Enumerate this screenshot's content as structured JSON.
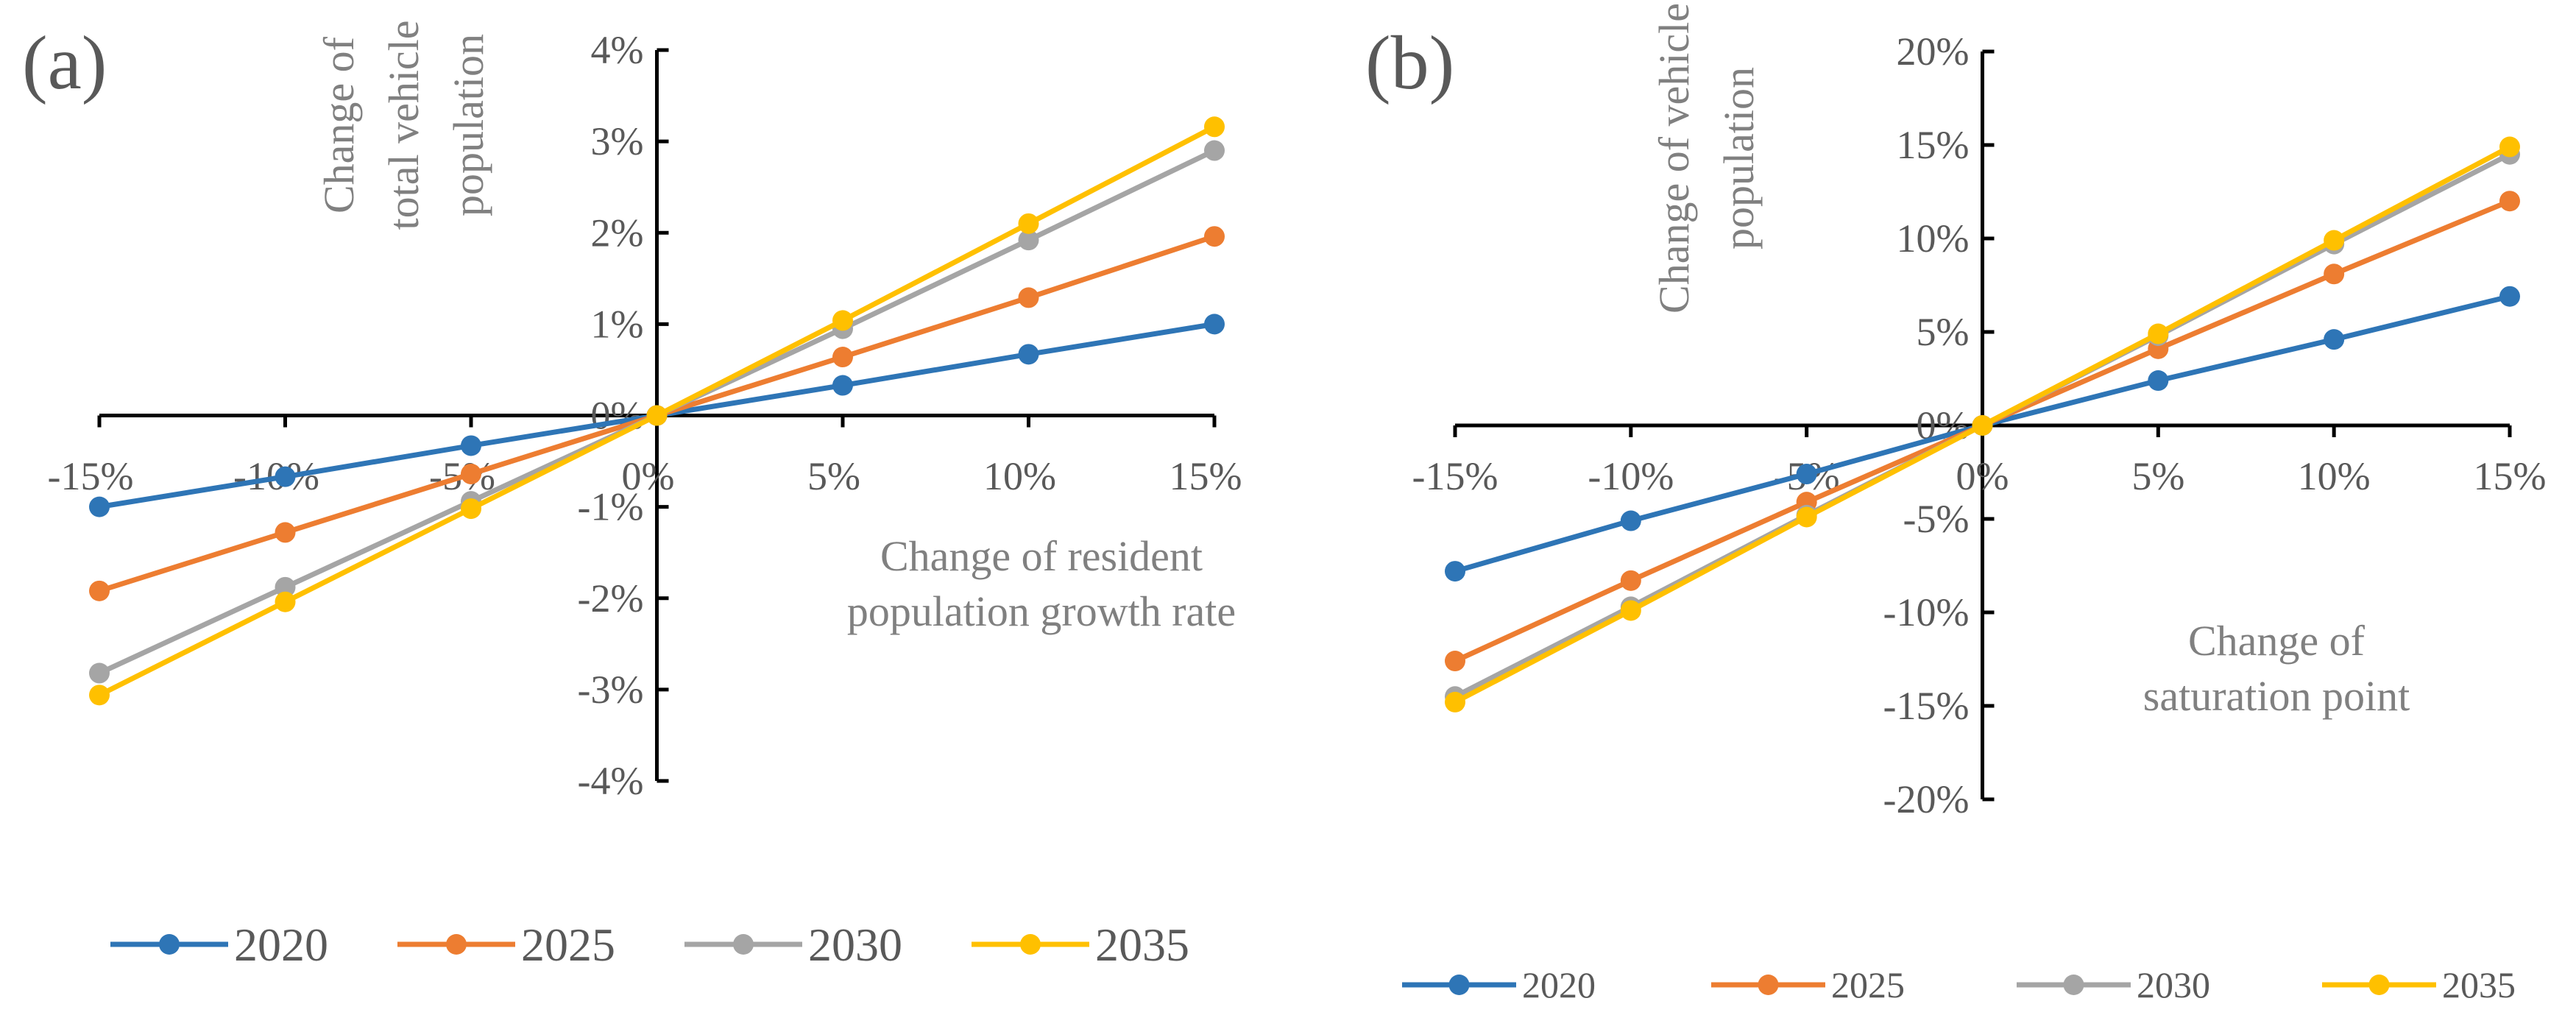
{
  "chart_data": [
    {
      "type": "line",
      "panel": "(a)",
      "title": "",
      "xlabel": [
        "Change of resident",
        "population growth rate"
      ],
      "ylabel": [
        "Change of",
        "total vehicle",
        "population"
      ],
      "x": [
        -15,
        -10,
        -5,
        0,
        5,
        10,
        15
      ],
      "x_tick_labels": [
        "-15%",
        "-10%",
        "-5%",
        "0%",
        "5%",
        "10%",
        "15%"
      ],
      "xlim": [
        -15,
        15
      ],
      "y_ticks": [
        4,
        3,
        2,
        1,
        0,
        -1,
        -2,
        -3,
        -4
      ],
      "y_tick_labels": [
        "4%",
        "3%",
        "2%",
        "1%",
        "0%",
        "-1%",
        "-2%",
        "-3%",
        "-4%"
      ],
      "ylim": [
        -4,
        4
      ],
      "legend_position": "bottom",
      "series": [
        {
          "name": "2020",
          "color": "#2E75B6",
          "values": [
            -1.0,
            -0.67,
            -0.33,
            0,
            0.33,
            0.67,
            1.0
          ]
        },
        {
          "name": "2025",
          "color": "#ED7D31",
          "values": [
            -1.92,
            -1.28,
            -0.64,
            0,
            0.64,
            1.29,
            1.96
          ]
        },
        {
          "name": "2030",
          "color": "#A5A5A5",
          "values": [
            -2.82,
            -1.88,
            -0.94,
            0,
            0.95,
            1.92,
            2.9
          ]
        },
        {
          "name": "2035",
          "color": "#FFC000",
          "values": [
            -3.06,
            -2.04,
            -1.02,
            0,
            1.04,
            2.1,
            3.16
          ]
        }
      ]
    },
    {
      "type": "line",
      "panel": "(b)",
      "title": "",
      "xlabel": [
        "Change of",
        "saturation point"
      ],
      "ylabel": [
        "Change of vehicle",
        "population"
      ],
      "x": [
        -15,
        -10,
        -5,
        0,
        5,
        10,
        15
      ],
      "x_tick_labels": [
        "-15%",
        "-10%",
        "-5%",
        "0%",
        "5%",
        "10%",
        "15%"
      ],
      "xlim": [
        -15,
        15
      ],
      "y_ticks": [
        20,
        15,
        10,
        5,
        0,
        -5,
        -10,
        -15,
        -20
      ],
      "y_tick_labels": [
        "20%",
        "15%",
        "10%",
        "5%",
        "0%",
        "-5%",
        "-10%",
        "-15%",
        "-20%"
      ],
      "ylim": [
        -20,
        20
      ],
      "legend_position": "bottom",
      "series": [
        {
          "name": "2020",
          "color": "#2E75B6",
          "values": [
            -7.8,
            -5.1,
            -2.6,
            0,
            2.4,
            4.6,
            6.9
          ]
        },
        {
          "name": "2025",
          "color": "#ED7D31",
          "values": [
            -12.6,
            -8.3,
            -4.1,
            0,
            4.1,
            8.1,
            12.0
          ]
        },
        {
          "name": "2030",
          "color": "#A5A5A5",
          "values": [
            -14.5,
            -9.7,
            -4.8,
            0,
            4.8,
            9.7,
            14.5
          ]
        },
        {
          "name": "2035",
          "color": "#FFC000",
          "values": [
            -14.8,
            -9.9,
            -4.9,
            0,
            4.9,
            9.9,
            14.9
          ]
        }
      ]
    }
  ]
}
